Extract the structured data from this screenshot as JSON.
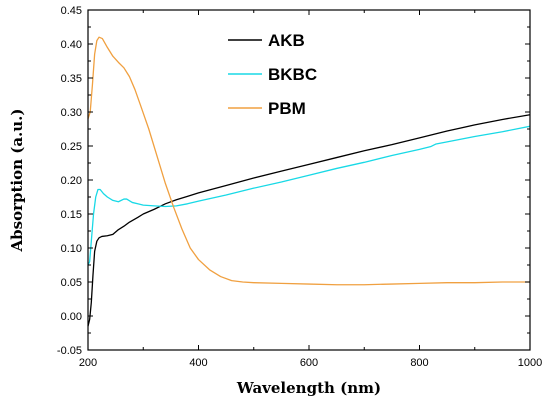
{
  "chart_data": {
    "type": "line",
    "title": "",
    "xlabel": "Wavelength (nm)",
    "ylabel": "Absorption (a.u.)",
    "xlim": [
      200,
      1000
    ],
    "ylim": [
      -0.05,
      0.45
    ],
    "x_ticks": [
      "200",
      "400",
      "600",
      "800",
      "1000"
    ],
    "x_tick_values": [
      200,
      400,
      600,
      800,
      1000
    ],
    "y_ticks": [
      "-0.05",
      "0.00",
      "0.05",
      "0.10",
      "0.15",
      "0.20",
      "0.25",
      "0.30",
      "0.35",
      "0.40",
      "0.45"
    ],
    "y_tick_values": [
      -0.05,
      0.0,
      0.05,
      0.1,
      0.15,
      0.2,
      0.25,
      0.3,
      0.35,
      0.4,
      0.45
    ],
    "grid": false,
    "legend_position": "top-center",
    "series": [
      {
        "name": "AKB",
        "color": "#000000",
        "points": [
          [
            200,
            -0.015
          ],
          [
            203,
            -0.005
          ],
          [
            206,
            0.02
          ],
          [
            209,
            0.06
          ],
          [
            212,
            0.095
          ],
          [
            216,
            0.11
          ],
          [
            220,
            0.115
          ],
          [
            225,
            0.117
          ],
          [
            235,
            0.118
          ],
          [
            245,
            0.12
          ],
          [
            255,
            0.127
          ],
          [
            265,
            0.132
          ],
          [
            275,
            0.138
          ],
          [
            290,
            0.145
          ],
          [
            300,
            0.15
          ],
          [
            320,
            0.157
          ],
          [
            340,
            0.165
          ],
          [
            360,
            0.171
          ],
          [
            380,
            0.176
          ],
          [
            400,
            0.181
          ],
          [
            450,
            0.192
          ],
          [
            500,
            0.203
          ],
          [
            550,
            0.213
          ],
          [
            600,
            0.223
          ],
          [
            650,
            0.233
          ],
          [
            700,
            0.243
          ],
          [
            750,
            0.252
          ],
          [
            800,
            0.262
          ],
          [
            850,
            0.272
          ],
          [
            900,
            0.281
          ],
          [
            950,
            0.289
          ],
          [
            1000,
            0.296
          ]
        ]
      },
      {
        "name": "BKBC",
        "color": "#18d9e6",
        "points": [
          [
            200,
            0.075
          ],
          [
            203,
            0.08
          ],
          [
            206,
            0.11
          ],
          [
            210,
            0.15
          ],
          [
            214,
            0.175
          ],
          [
            218,
            0.186
          ],
          [
            222,
            0.186
          ],
          [
            228,
            0.18
          ],
          [
            235,
            0.175
          ],
          [
            245,
            0.17
          ],
          [
            255,
            0.168
          ],
          [
            265,
            0.172
          ],
          [
            270,
            0.172
          ],
          [
            280,
            0.167
          ],
          [
            290,
            0.165
          ],
          [
            300,
            0.163
          ],
          [
            320,
            0.162
          ],
          [
            340,
            0.161
          ],
          [
            360,
            0.162
          ],
          [
            380,
            0.165
          ],
          [
            400,
            0.169
          ],
          [
            450,
            0.178
          ],
          [
            500,
            0.188
          ],
          [
            550,
            0.197
          ],
          [
            600,
            0.207
          ],
          [
            650,
            0.217
          ],
          [
            700,
            0.226
          ],
          [
            750,
            0.236
          ],
          [
            800,
            0.245
          ],
          [
            820,
            0.249
          ],
          [
            830,
            0.253
          ],
          [
            850,
            0.256
          ],
          [
            900,
            0.264
          ],
          [
            950,
            0.271
          ],
          [
            1000,
            0.279
          ]
        ]
      },
      {
        "name": "PBM",
        "color": "#f0a040",
        "points": [
          [
            200,
            0.29
          ],
          [
            204,
            0.3
          ],
          [
            208,
            0.34
          ],
          [
            212,
            0.385
          ],
          [
            216,
            0.405
          ],
          [
            220,
            0.41
          ],
          [
            226,
            0.408
          ],
          [
            235,
            0.395
          ],
          [
            245,
            0.382
          ],
          [
            255,
            0.373
          ],
          [
            265,
            0.365
          ],
          [
            275,
            0.352
          ],
          [
            285,
            0.333
          ],
          [
            295,
            0.31
          ],
          [
            310,
            0.275
          ],
          [
            325,
            0.235
          ],
          [
            340,
            0.195
          ],
          [
            355,
            0.16
          ],
          [
            370,
            0.128
          ],
          [
            385,
            0.1
          ],
          [
            400,
            0.083
          ],
          [
            420,
            0.068
          ],
          [
            440,
            0.058
          ],
          [
            460,
            0.052
          ],
          [
            480,
            0.05
          ],
          [
            500,
            0.049
          ],
          [
            550,
            0.048
          ],
          [
            600,
            0.047
          ],
          [
            650,
            0.046
          ],
          [
            700,
            0.046
          ],
          [
            750,
            0.047
          ],
          [
            800,
            0.048
          ],
          [
            850,
            0.049
          ],
          [
            900,
            0.049
          ],
          [
            950,
            0.05
          ],
          [
            1000,
            0.05
          ]
        ]
      }
    ]
  }
}
